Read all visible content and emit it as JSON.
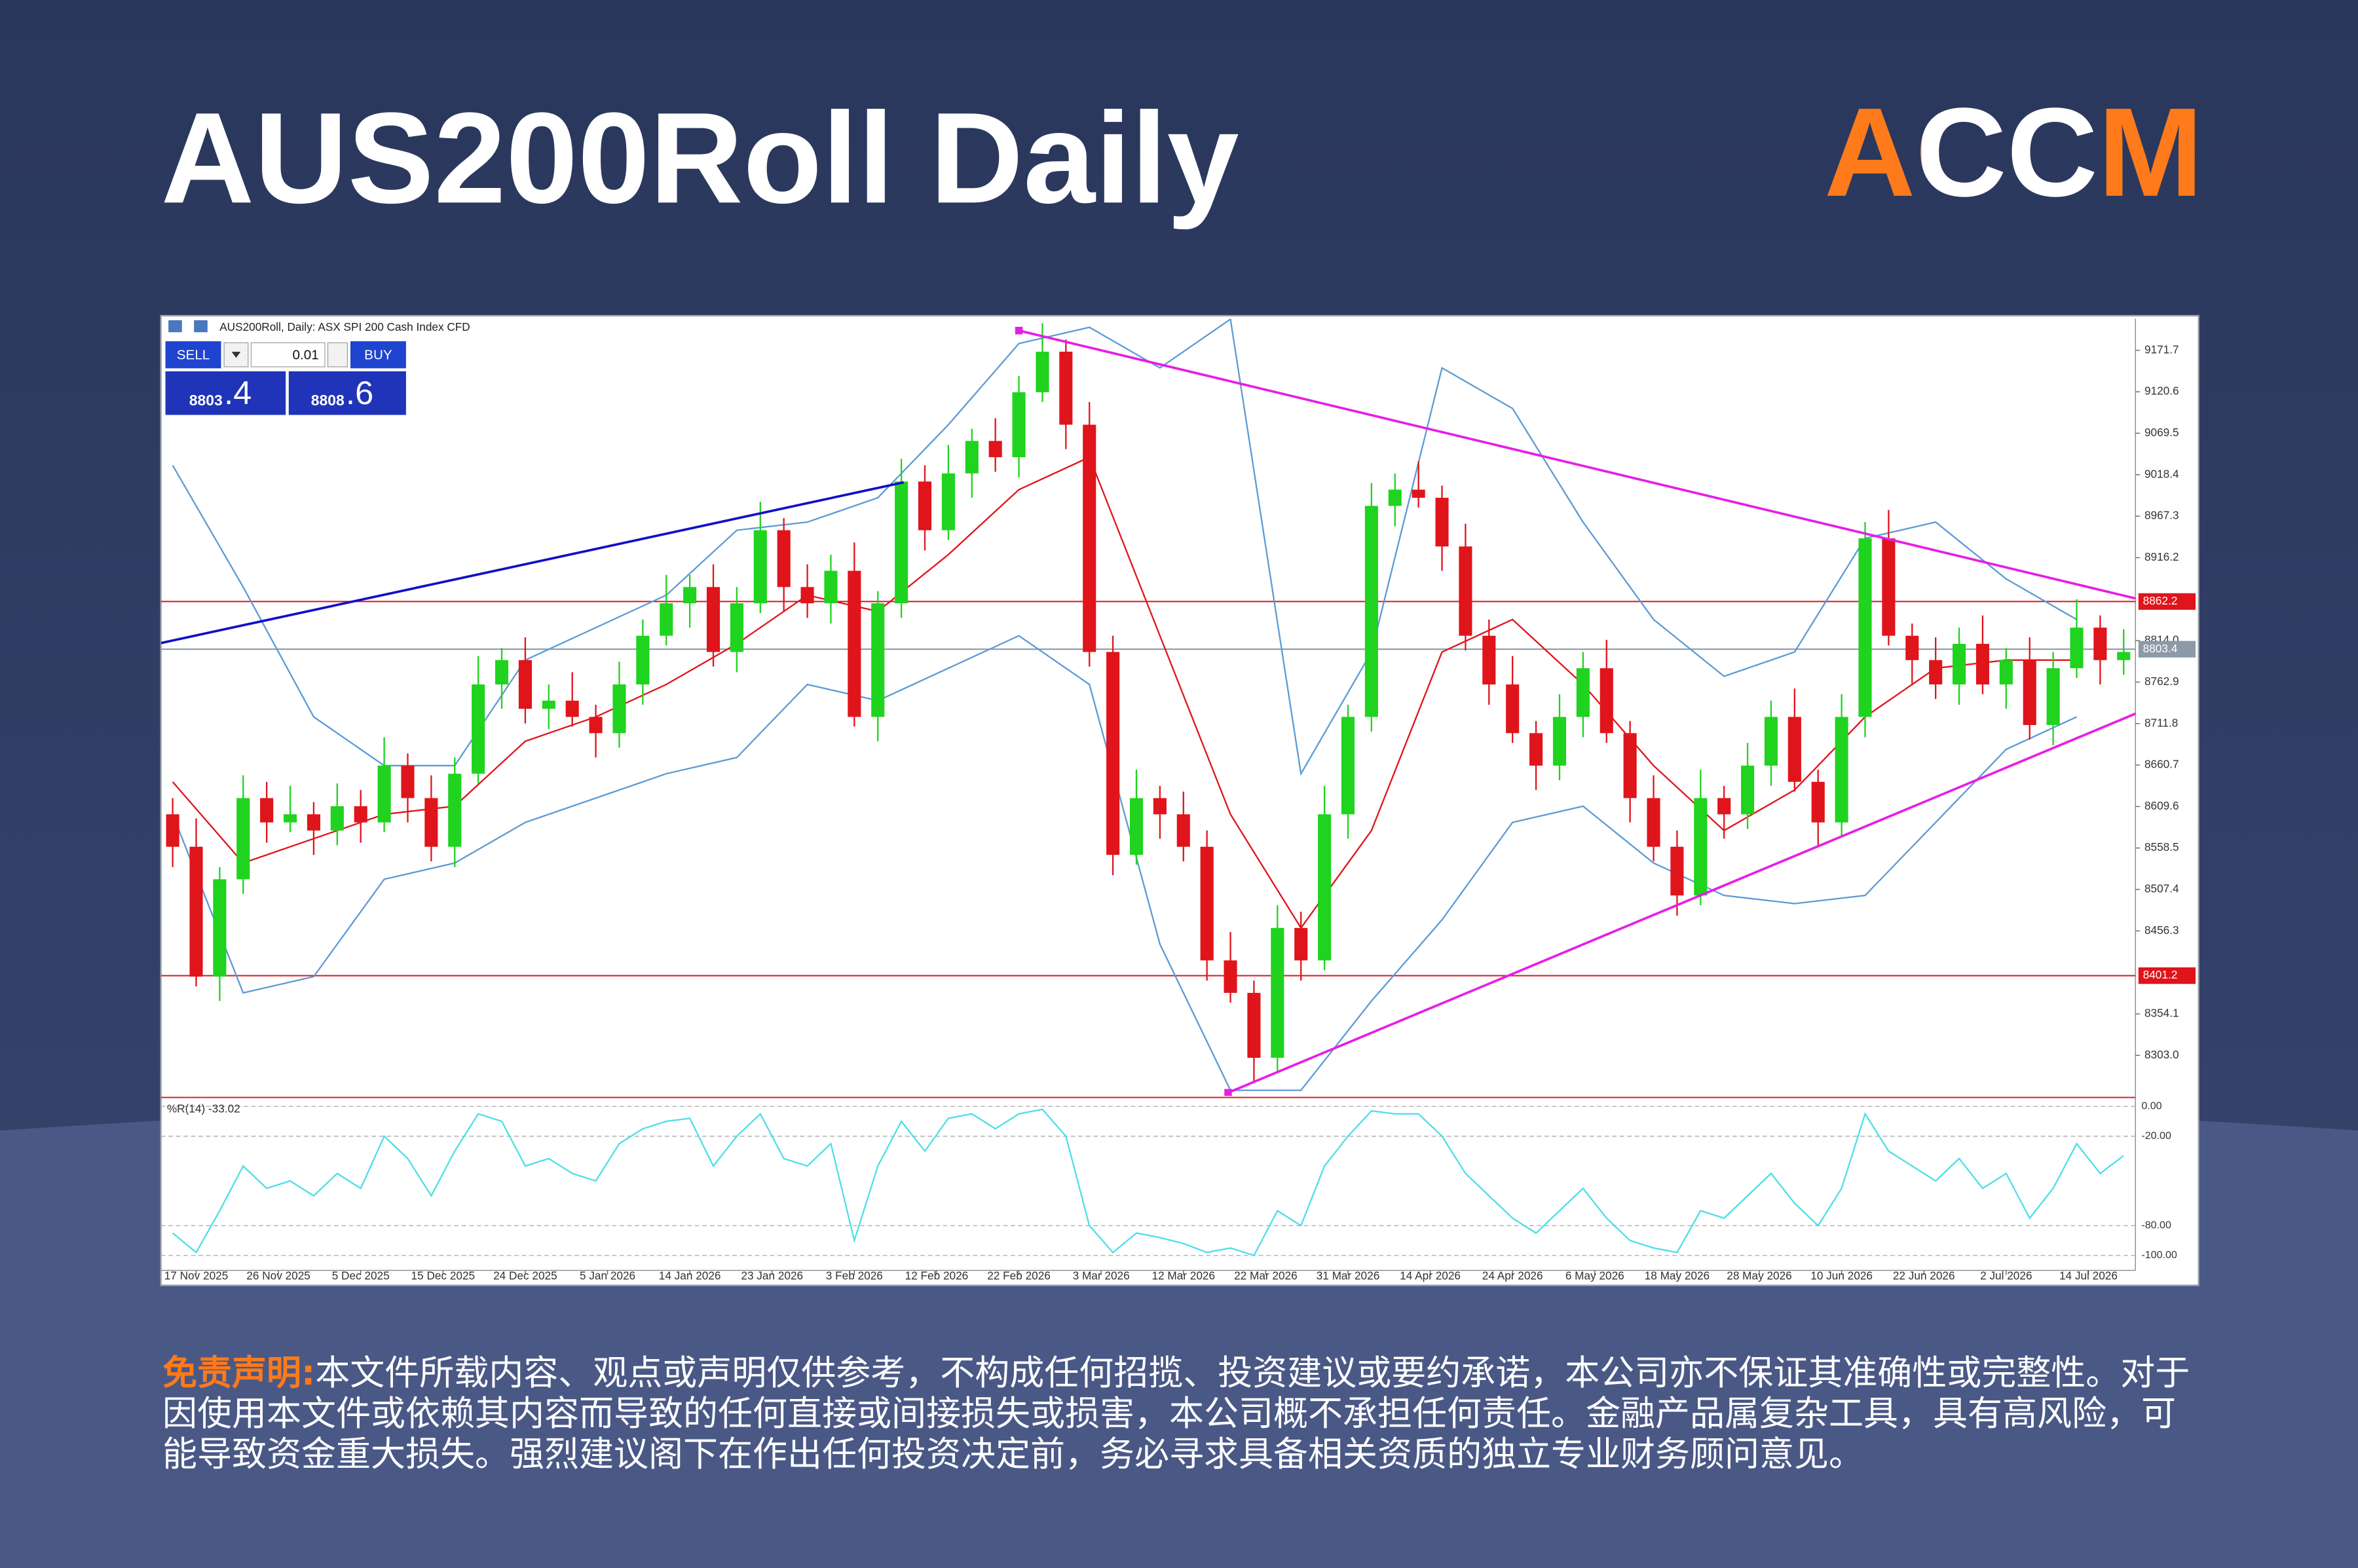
{
  "header": {
    "title": "AUS200Roll Daily",
    "logo": "ACCM"
  },
  "disclaimer": {
    "label": "免责声明:",
    "text": "本文件所载内容、观点或声明仅供参考，不构成任何招揽、投资建议或要约承诺，本公司亦不保证其准确性或完整性。对于因使用本文件或依赖其内容而导致的任何直接或间接损失或损害，本公司概不承担任何责任。金融产品属复杂工具，具有高风险，可能导致资金重大损失。强烈建议阁下在作出任何投资决定前，务必寻求具备相关资质的独立专业财务顾问意见。"
  },
  "trade_panel": {
    "sell": "SELL",
    "buy": "BUY",
    "lot": "0.01",
    "bid_main": "8803",
    "bid_frac": ".4",
    "ask_main": "8808",
    "ask_frac": ".6"
  },
  "chart_data": [
    {
      "type": "candlestick",
      "title": "AUS200Roll, Daily: ASX SPI 200 Cash Index CFD",
      "xlim": [
        -0.5,
        83.5
      ],
      "xticks": [
        {
          "value": 1,
          "label": "17 Nov 2025"
        },
        {
          "value": 4.5,
          "label": "26 Nov 2025"
        },
        {
          "value": 8,
          "label": "5 Dec 2025"
        },
        {
          "value": 11.5,
          "label": "15 Dec 2025"
        },
        {
          "value": 15,
          "label": "24 Dec 2025"
        },
        {
          "value": 18.5,
          "label": "5 Jan 2026"
        },
        {
          "value": 22,
          "label": "14 Jan 2026"
        },
        {
          "value": 25.5,
          "label": "23 Jan 2026"
        },
        {
          "value": 29,
          "label": "3 Feb 2026"
        },
        {
          "value": 32.5,
          "label": "12 Feb 2026"
        },
        {
          "value": 36,
          "label": "22 Feb 2026"
        },
        {
          "value": 39.5,
          "label": "3 Mar 2026"
        },
        {
          "value": 43,
          "label": "12 Mar 2026"
        },
        {
          "value": 46.5,
          "label": "22 Mar 2026"
        },
        {
          "value": 50,
          "label": "31 Mar 2026"
        },
        {
          "value": 53.5,
          "label": "14 Apr 2026"
        },
        {
          "value": 57,
          "label": "24 Apr 2026"
        },
        {
          "value": 60.5,
          "label": "6 May 2026"
        },
        {
          "value": 64,
          "label": "18 May 2026"
        },
        {
          "value": 67.5,
          "label": "28 May 2026"
        },
        {
          "value": 71,
          "label": "10 Jun 2026"
        },
        {
          "value": 74.5,
          "label": "22 Jun 2026"
        },
        {
          "value": 78,
          "label": "2 Jul 2026"
        },
        {
          "value": 81.5,
          "label": "14 Jul 2026"
        }
      ],
      "ylim": [
        8253,
        9210.6
      ],
      "yticks": [
        9171.7,
        9120.6,
        9069.5,
        9018.4,
        8967.3,
        8916.2,
        {
          "value": 8814,
          "label": "8814.0"
        },
        8762.9,
        8711.8,
        8660.7,
        8609.6,
        8558.5,
        8507.4,
        8456.3,
        8354.1,
        {
          "value": 8303,
          "label": "8303.0"
        }
      ],
      "up_color": "#1fd31f",
      "down_color": "#e0141b",
      "open": [
        8600,
        8560,
        8400,
        8520,
        8620,
        8590,
        8600,
        8580,
        8610,
        8590,
        8660,
        8620,
        8560,
        8650,
        8760,
        8790,
        8730,
        8740,
        8720,
        8700,
        8760,
        8820,
        8860,
        8880,
        8800,
        8860,
        8950,
        8880,
        8860,
        8900,
        8720,
        8860,
        9010,
        8950,
        9020,
        9060,
        9040,
        9120,
        9170,
        9080,
        8800,
        8550,
        8620,
        8600,
        8560,
        8420,
        8380,
        8300,
        8460,
        8420,
        8600,
        8720,
        8980,
        9000,
        8990,
        8930,
        8820,
        8760,
        8700,
        8660,
        8720,
        8780,
        8700,
        8620,
        8560,
        8500,
        8620,
        8600,
        8660,
        8720,
        8640,
        8590,
        8720,
        8940,
        8820,
        8790,
        8760,
        8810,
        8760,
        8790,
        8710,
        8780,
        8830,
        8790
      ],
      "high": [
        8620,
        8595,
        8535,
        8648,
        8640,
        8635,
        8615,
        8638,
        8630,
        8695,
        8675,
        8648,
        8670,
        8795,
        8805,
        8818,
        8760,
        8775,
        8735,
        8788,
        8840,
        8895,
        8895,
        8908,
        8880,
        8985,
        8965,
        8908,
        8920,
        8935,
        8875,
        9038,
        9030,
        9055,
        9075,
        9088,
        9140,
        9205,
        9185,
        9108,
        8820,
        8655,
        8635,
        8628,
        8580,
        8455,
        8395,
        8488,
        8480,
        8635,
        8735,
        9008,
        9020,
        9035,
        9005,
        8958,
        8840,
        8795,
        8715,
        8748,
        8800,
        8815,
        8715,
        8648,
        8580,
        8655,
        8635,
        8688,
        8740,
        8755,
        8655,
        8748,
        8960,
        8975,
        8835,
        8818,
        8830,
        8845,
        8805,
        8818,
        8800,
        8865,
        8845,
        8828
      ],
      "low": [
        8535,
        8388,
        8370,
        8502,
        8565,
        8578,
        8550,
        8562,
        8565,
        8578,
        8590,
        8542,
        8535,
        8638,
        8730,
        8712,
        8705,
        8708,
        8670,
        8682,
        8735,
        8808,
        8830,
        8782,
        8775,
        8848,
        8850,
        8842,
        8835,
        8708,
        8690,
        8842,
        8925,
        8938,
        8990,
        9022,
        9015,
        9108,
        9050,
        8782,
        8525,
        8538,
        8570,
        8542,
        8395,
        8368,
        8270,
        8282,
        8395,
        8408,
        8570,
        8702,
        8955,
        8978,
        8900,
        8802,
        8735,
        8688,
        8630,
        8642,
        8695,
        8688,
        8590,
        8542,
        8475,
        8488,
        8570,
        8582,
        8635,
        8628,
        8560,
        8572,
        8695,
        8808,
        8760,
        8742,
        8735,
        8748,
        8730,
        8692,
        8685,
        8768,
        8760,
        8772
      ],
      "close": [
        8560,
        8400,
        8520,
        8620,
        8590,
        8600,
        8580,
        8610,
        8590,
        8660,
        8620,
        8560,
        8650,
        8760,
        8790,
        8730,
        8740,
        8720,
        8700,
        8760,
        8820,
        8860,
        8880,
        8800,
        8860,
        8950,
        8880,
        8860,
        8900,
        8720,
        8860,
        9010,
        8950,
        9020,
        9060,
        9040,
        9120,
        9170,
        9080,
        8800,
        8550,
        8620,
        8600,
        8560,
        8420,
        8380,
        8300,
        8460,
        8420,
        8600,
        8720,
        8980,
        9000,
        8990,
        8930,
        8820,
        8760,
        8700,
        8660,
        8720,
        8780,
        8700,
        8620,
        8560,
        8500,
        8620,
        8600,
        8660,
        8720,
        8640,
        8590,
        8720,
        8940,
        8820,
        8790,
        8760,
        8810,
        8760,
        8790,
        8710,
        8780,
        8830,
        8790,
        8800
      ],
      "lines": [
        {
          "color": "#5b9bd5",
          "x": [
            0,
            3,
            6,
            9,
            12,
            15,
            18,
            21,
            24,
            27,
            30,
            33,
            36,
            39,
            42,
            45,
            48,
            51,
            54,
            57,
            60,
            63,
            66,
            69,
            72,
            75,
            78,
            81
          ],
          "values": [
            9030,
            8880,
            8720,
            8660,
            8660,
            8790,
            8830,
            8870,
            8950,
            8960,
            8990,
            9080,
            9180,
            9200,
            9150,
            9210,
            8650,
            8800,
            9150,
            9100,
            8960,
            8840,
            8770,
            8800,
            8940,
            8960,
            8890,
            8840
          ]
        },
        {
          "color": "#e0141b",
          "x": [
            0,
            3,
            6,
            9,
            12,
            15,
            18,
            21,
            24,
            27,
            30,
            33,
            36,
            39,
            42,
            45,
            48,
            51,
            54,
            57,
            60,
            63,
            66,
            69,
            72,
            75,
            78,
            81
          ],
          "values": [
            8640,
            8540,
            8570,
            8600,
            8610,
            8690,
            8720,
            8760,
            8810,
            8870,
            8850,
            8920,
            9000,
            9040,
            8820,
            8600,
            8460,
            8580,
            8800,
            8840,
            8760,
            8660,
            8580,
            8630,
            8720,
            8780,
            8790,
            8790
          ]
        },
        {
          "color": "#5b9bd5",
          "x": [
            0,
            3,
            6,
            9,
            12,
            15,
            18,
            21,
            24,
            27,
            30,
            33,
            36,
            39,
            42,
            45,
            48,
            51,
            54,
            57,
            60,
            63,
            66,
            69,
            72,
            75,
            78,
            81
          ],
          "values": [
            8600,
            8380,
            8400,
            8520,
            8540,
            8590,
            8620,
            8650,
            8670,
            8760,
            8740,
            8780,
            8820,
            8760,
            8440,
            8260,
            8260,
            8370,
            8470,
            8590,
            8610,
            8540,
            8500,
            8490,
            8500,
            8590,
            8680,
            8720
          ]
        }
      ],
      "hlines": [
        {
          "value": 8862.2,
          "color": "#e0141b"
        },
        {
          "value": 8803.4,
          "color": "#8c9aa8"
        },
        {
          "value": 8401.2,
          "color": "#e0141b"
        }
      ],
      "trendlines": [
        {
          "color": "#1010c8",
          "x": [
            -0.5,
            31.1
          ],
          "values": [
            8811,
            9009
          ]
        },
        {
          "color": "#e61ee6",
          "x": [
            36,
            83.5
          ],
          "values": [
            9196,
            8866
          ]
        },
        {
          "color": "#e61ee6",
          "x": [
            44.9,
            83.5
          ],
          "values": [
            8257,
            8724
          ]
        }
      ]
    },
    {
      "type": "line",
      "label": "%R(14) -33.02",
      "xlim": [
        -0.5,
        83.5
      ],
      "ylim": [
        -110,
        5
      ],
      "yticks": [
        {
          "value": 0,
          "label": "0.00"
        },
        {
          "value": -20,
          "label": "-20.00"
        },
        {
          "value": -80,
          "label": "-80.00"
        },
        {
          "value": -100,
          "label": "-100.00"
        }
      ],
      "color": "#4ddfe8",
      "values": [
        -85,
        -98,
        -70,
        -40,
        -55,
        -50,
        -60,
        -45,
        -55,
        -20,
        -35,
        -60,
        -30,
        -5,
        -10,
        -40,
        -35,
        -45,
        -50,
        -25,
        -15,
        -10,
        -8,
        -40,
        -20,
        -5,
        -35,
        -40,
        -25,
        -90,
        -40,
        -10,
        -30,
        -8,
        -5,
        -15,
        -5,
        -2,
        -20,
        -80,
        -98,
        -85,
        -88,
        -92,
        -98,
        -95,
        -100,
        -70,
        -80,
        -40,
        -20,
        -3,
        -5,
        -5,
        -20,
        -45,
        -60,
        -75,
        -85,
        -70,
        -55,
        -75,
        -90,
        -95,
        -98,
        -70,
        -75,
        -60,
        -45,
        -65,
        -80,
        -55,
        -5,
        -30,
        -40,
        -50,
        -35,
        -55,
        -45,
        -75,
        -55,
        -25,
        -45,
        -33.02
      ]
    }
  ]
}
